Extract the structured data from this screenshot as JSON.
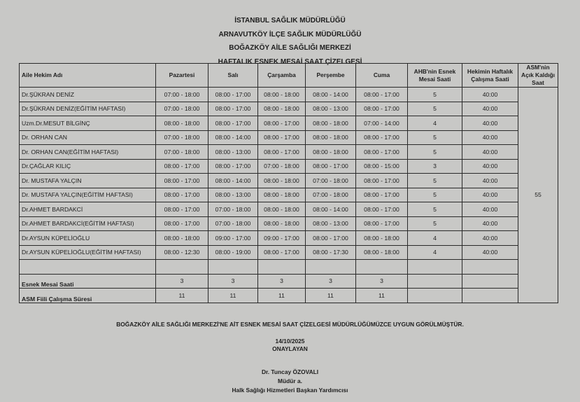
{
  "titles": [
    "İSTANBUL SAĞLIK MÜDÜRLÜĞÜ",
    "ARNAVUTKÖY İLÇE SAĞLIK MÜDÜRLÜĞÜ",
    "BOĞAZKÖY AİLE SAĞLIĞI MERKEZİ",
    "HAFTALIK ESNEK MESAİ SAAT ÇİZELGESİ"
  ],
  "table": {
    "headers": [
      "Aile Hekim Adı",
      "Pazartesi",
      "Salı",
      "Çarşamba",
      "Perşembe",
      "Cuma",
      "AHB'nin Esnek Mesai Saati",
      "Hekimin Haftalık Çalışma Saati",
      "ASM'nin Açık Kaldığı Saat"
    ],
    "asm_open_hours": "55",
    "rows": [
      [
        "Dr.ŞÜKRAN DENİZ",
        "07:00  -  18:00",
        "08:00  -  17:00",
        "08:00  -  18:00",
        "08:00  -  14:00",
        "08:00  -  17:00",
        "5",
        "40:00"
      ],
      [
        "Dr.ŞÜKRAN DENİZ(EĞİTİM HAFTASI)",
        "07:00  -  18:00",
        "08:00  -  17:00",
        "08:00  -  18:00",
        "08:00  -  13:00",
        "08:00  -  17:00",
        "5",
        "40:00"
      ],
      [
        "Uzm.Dr.MESUT BİLGİNÇ",
        "08:00  -  18:00",
        "08:00  -  17:00",
        "08:00  -  17:00",
        "08:00  -  18:00",
        "07:00  -  14:00",
        "4",
        "40:00"
      ],
      [
        "Dr. ORHAN CAN",
        "07:00  -  18:00",
        "08:00  -  14:00",
        "08:00  -  17:00",
        "08:00  -  18:00",
        "08:00  -  17:00",
        "5",
        "40:00"
      ],
      [
        "Dr. ORHAN CAN(EĞİTİM HAFTASI)",
        "07:00  -  18:00",
        "08:00  -  13:00",
        "08:00  -  17:00",
        "08:00  -  18:00",
        "08:00  -  17:00",
        "5",
        "40:00"
      ],
      [
        "Dr.ÇAĞLAR KILIÇ",
        "08:00  -  17:00",
        "08:00  -  17:00",
        "07:00  -  18:00",
        "08:00  -  17:00",
        "08:00  -  15:00",
        "3",
        "40:00"
      ],
      [
        "Dr. MUSTAFA YALÇIN",
        "08:00  -  17:00",
        "08:00  -  14:00",
        "08:00  -  18:00",
        "07:00  -  18:00",
        "08:00  -  17:00",
        "5",
        "40:00"
      ],
      [
        "Dr. MUSTAFA YALÇIN(EĞİTİM HAFTASI)",
        "08:00  -  17:00",
        "08:00  -  13:00",
        "08:00  -  18:00",
        "07:00  -  18:00",
        "08:00  -  17:00",
        "5",
        "40:00"
      ],
      [
        "Dr.AHMET BARDAKCİ",
        "08:00  -  17:00",
        "07:00  -  18:00",
        "08:00  -  18:00",
        "08:00  -  14:00",
        "08:00  -  17:00",
        "5",
        "40:00"
      ],
      [
        "Dr.AHMET BARDAKCİ(EĞİTİM HAFTASI)",
        "08:00  -  17:00",
        "07:00  -  18:00",
        "08:00  -  18:00",
        "08:00  -  13:00",
        "08:00  -  17:00",
        "5",
        "40:00"
      ],
      [
        "Dr.AYSUN KÜPELİOĞLU",
        "08:00  -  18:00",
        "09:00  -  17:00",
        "09:00  -  17:00",
        "08:00  -  17:00",
        "08:00  -  18:00",
        "4",
        "40:00"
      ],
      [
        "Dr.AYSUN KÜPELİOĞLU(EĞİTİM HAFTASI)",
        "08:00  -  12:30",
        "08:00  -  19:00",
        "08:00  -  17:00",
        "08:00  -  17:30",
        "08:00  -  18:00",
        "4",
        "40:00"
      ],
      [
        "",
        "",
        "",
        "",
        "",
        "",
        "",
        ""
      ]
    ],
    "summary": [
      [
        "Esnek Mesai Saati",
        "3",
        "3",
        "3",
        "3",
        "3",
        "",
        ""
      ],
      [
        "ASM Fiili Çalışma Süresi",
        "11",
        "11",
        "11",
        "11",
        "11",
        "",
        ""
      ]
    ]
  },
  "footer": {
    "approval_text": "BOĞAZKÖY AİLE SAĞLIĞI MERKEZİ'NE AİT ESNEK MESAİ SAAT ÇİZELGESİ MÜDÜRLÜĞÜMÜZCE UYGUN GÖRÜLMÜŞTÜR.",
    "date": "14/10/2025",
    "approver_label": "ONAYLAYAN",
    "signer_name": "Dr. Tuncay ÖZOVALI",
    "signer_role": "Müdür a.",
    "signer_title": "Halk Sağlığı Hizmetleri Başkan Yardımcısı"
  }
}
